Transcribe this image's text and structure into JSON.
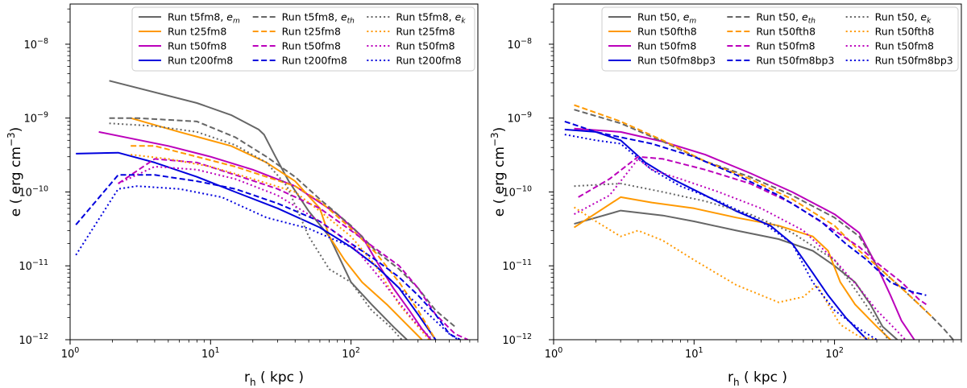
{
  "chart_data": [
    {
      "type": "line",
      "xscale": "log",
      "yscale": "log",
      "xlim": [
        1,
        800
      ],
      "ylim": [
        1e-12,
        3.5e-08
      ],
      "xlabel": "r_h ( kpc )",
      "ylabel": "e ( erg cm^-3 )",
      "xlabel_parts": {
        "base": "r",
        "sub": "h",
        "rest": " ( kpc )"
      },
      "ylabel_parts": {
        "pre": "e ( erg cm",
        "sup": "−3",
        "post": ")"
      },
      "x_ticks": [
        {
          "v": 1,
          "m": "0"
        },
        {
          "v": 10,
          "m": "1"
        },
        {
          "v": 100,
          "m": "2"
        }
      ],
      "y_ticks": [
        {
          "v": 1e-12,
          "m": "−12"
        },
        {
          "v": 1e-11,
          "m": "−11"
        },
        {
          "v": 1e-10,
          "m": "−10"
        },
        {
          "v": 1e-09,
          "m": "−9"
        },
        {
          "v": 1e-08,
          "m": "−8"
        }
      ],
      "legend_location": "top-right",
      "legend_columns": [
        [
          "s0",
          "s1",
          "s2",
          "s3"
        ],
        [
          "s4",
          "s5",
          "s6",
          "s7"
        ],
        [
          "s8",
          "s9",
          "s10",
          "s11"
        ]
      ],
      "series": [
        {
          "id": "s0",
          "label": "Run t5fm8, ",
          "label_math": "e",
          "label_sub": "m",
          "color": "#666666",
          "style": "solid",
          "x": [
            1.9,
            8,
            14,
            22,
            24,
            29,
            36,
            50,
            70,
            100,
            140,
            200,
            250
          ],
          "y": [
            3.2e-09,
            1.6e-09,
            1.1e-09,
            7e-10,
            6e-10,
            3e-10,
            1.4e-10,
            5.5e-11,
            2.5e-11,
            6e-12,
            3e-12,
            1.5e-12,
            1e-12
          ]
        },
        {
          "id": "s1",
          "label": "Run t25fm8",
          "color": "#ff9900",
          "style": "solid",
          "x": [
            2.7,
            6,
            14,
            25,
            40,
            60,
            70,
            90,
            120,
            180,
            250,
            320
          ],
          "y": [
            1e-09,
            6.5e-10,
            4.2e-10,
            2.5e-10,
            1.4e-10,
            6e-11,
            2.5e-11,
            1.2e-11,
            6e-12,
            3e-12,
            1.6e-12,
            1e-12
          ]
        },
        {
          "id": "s2",
          "label": "Run t50fm8",
          "color": "#bb00bb",
          "style": "solid",
          "x": [
            1.6,
            5,
            10,
            20,
            40,
            80,
            120,
            150,
            200,
            260,
            320,
            370
          ],
          "y": [
            6.5e-10,
            4.2e-10,
            3e-10,
            2e-10,
            1.2e-10,
            5e-11,
            2.5e-11,
            1.2e-11,
            5e-12,
            2.5e-12,
            1.4e-12,
            1e-12
          ]
        },
        {
          "id": "s3",
          "label": "Run t200fm8",
          "color": "#0000dd",
          "style": "solid",
          "x": [
            1.1,
            2.2,
            4,
            8,
            15,
            30,
            60,
            100,
            150,
            220,
            300,
            400
          ],
          "y": [
            3.3e-10,
            3.4e-10,
            2.5e-10,
            1.6e-10,
            1e-10,
            6e-11,
            3.3e-11,
            1.8e-11,
            1e-11,
            5e-12,
            2.2e-12,
            1e-12
          ]
        },
        {
          "id": "s4",
          "label": "Run t5fm8, ",
          "label_math": "e",
          "label_sub": "th",
          "color": "#666666",
          "style": "dashed",
          "x": [
            1.9,
            3,
            8,
            15,
            25,
            40,
            60,
            100,
            150,
            220,
            300,
            400,
            550
          ],
          "y": [
            1e-09,
            1e-09,
            9e-10,
            5.5e-10,
            3e-10,
            1.6e-10,
            8e-11,
            3.5e-11,
            1.6e-11,
            9e-12,
            5e-12,
            2.5e-12,
            1.5e-12
          ]
        },
        {
          "id": "s5",
          "label": "Run t25fm8",
          "color": "#ff9900",
          "style": "dashed",
          "x": [
            2.7,
            4,
            8,
            15,
            25,
            40,
            60,
            100,
            150,
            220,
            300,
            400
          ],
          "y": [
            4.2e-10,
            4.2e-10,
            3e-10,
            2.2e-10,
            1.6e-10,
            1.2e-10,
            7.5e-11,
            3.2e-11,
            1.5e-11,
            6e-12,
            2.5e-12,
            1e-12
          ]
        },
        {
          "id": "s6",
          "label": "Run t50fm8",
          "color": "#bb00bb",
          "style": "dashed",
          "x": [
            2.2,
            4,
            8,
            15,
            30,
            60,
            100,
            150,
            220,
            300,
            400,
            550,
            680
          ],
          "y": [
            1.3e-10,
            2.8e-10,
            2.5e-10,
            1.7e-10,
            1.1e-10,
            6e-11,
            3e-11,
            1.7e-11,
            1e-11,
            5e-12,
            2.2e-12,
            1.2e-12,
            1e-12
          ]
        },
        {
          "id": "s7",
          "label": "Run t200fm8",
          "color": "#0000dd",
          "style": "dashed",
          "x": [
            1.1,
            2.2,
            4,
            8,
            15,
            30,
            60,
            100,
            150,
            220,
            300,
            400,
            500,
            600
          ],
          "y": [
            3.6e-11,
            1.7e-10,
            1.7e-10,
            1.4e-10,
            1.1e-10,
            7e-11,
            4e-11,
            2e-11,
            1.2e-11,
            7e-12,
            4e-12,
            2.2e-12,
            1.2e-12,
            1e-12
          ]
        },
        {
          "id": "s8",
          "label": "Run t5fm8, ",
          "label_math": "e",
          "label_sub": "k",
          "color": "#666666",
          "style": "dotted",
          "x": [
            1.9,
            4,
            8,
            15,
            25,
            35,
            50,
            70,
            100,
            140,
            190,
            230
          ],
          "y": [
            8.5e-10,
            7.8e-10,
            6.5e-10,
            4.3e-10,
            2.5e-10,
            1.2e-10,
            2.5e-11,
            9e-12,
            6e-12,
            2.5e-12,
            1.5e-12,
            1e-12
          ]
        },
        {
          "id": "s9",
          "label": "Run t25fm8",
          "color": "#ff9900",
          "style": "dotted",
          "x": [
            2.7,
            5,
            10,
            20,
            40,
            60,
            100,
            150,
            220,
            300,
            360
          ],
          "y": [
            3.2e-10,
            2.8e-10,
            2.2e-10,
            1.5e-10,
            1e-10,
            5.5e-11,
            2.5e-11,
            1e-11,
            3e-12,
            1.5e-12,
            1e-12
          ]
        },
        {
          "id": "s10",
          "label": "Run t50fm8",
          "color": "#bb00bb",
          "style": "dotted",
          "x": [
            2.2,
            4,
            8,
            15,
            30,
            60,
            100,
            150,
            200,
            280,
            380
          ],
          "y": [
            1.3e-10,
            2.2e-10,
            2e-10,
            1.5e-10,
            9e-11,
            4e-11,
            2e-11,
            8e-12,
            4e-12,
            1.8e-12,
            1e-12
          ]
        },
        {
          "id": "s11",
          "label": "Run t200fm8",
          "color": "#0000dd",
          "style": "dotted",
          "x": [
            1.1,
            2.2,
            3,
            6,
            12,
            25,
            50,
            100,
            150,
            220,
            300,
            400,
            500,
            580
          ],
          "y": [
            1.4e-11,
            1.1e-10,
            1.2e-10,
            1.1e-10,
            8.5e-11,
            4.5e-11,
            3.2e-11,
            1.8e-11,
            1e-11,
            5e-12,
            3e-12,
            1.8e-12,
            1.2e-12,
            1e-12
          ]
        }
      ]
    },
    {
      "type": "line",
      "xscale": "log",
      "yscale": "log",
      "xlim": [
        1,
        800
      ],
      "ylim": [
        1e-12,
        3.5e-08
      ],
      "xlabel": "r_h ( kpc )",
      "ylabel": "e ( erg cm^-3 )",
      "xlabel_parts": {
        "base": "r",
        "sub": "h",
        "rest": " ( kpc )"
      },
      "ylabel_parts": {
        "pre": "e ( erg cm",
        "sup": "−3",
        "post": ")"
      },
      "x_ticks": [
        {
          "v": 1,
          "m": "0"
        },
        {
          "v": 10,
          "m": "1"
        },
        {
          "v": 100,
          "m": "2"
        }
      ],
      "y_ticks": [
        {
          "v": 1e-12,
          "m": "−12"
        },
        {
          "v": 1e-11,
          "m": "−11"
        },
        {
          "v": 1e-10,
          "m": "−10"
        },
        {
          "v": 1e-09,
          "m": "−9"
        },
        {
          "v": 1e-08,
          "m": "−8"
        }
      ],
      "legend_location": "top-right",
      "legend_columns": [
        [
          "s0",
          "s1",
          "s2",
          "s3"
        ],
        [
          "s4",
          "s5",
          "s6",
          "s7"
        ],
        [
          "s8",
          "s9",
          "s10",
          "s11"
        ]
      ],
      "series": [
        {
          "id": "s0",
          "label": "Run t50, ",
          "label_math": "e",
          "label_sub": "m",
          "color": "#666666",
          "style": "solid",
          "x": [
            1.4,
            3,
            6,
            10,
            20,
            40,
            70,
            100,
            140,
            180,
            220,
            280
          ],
          "y": [
            3.7e-11,
            5.6e-11,
            4.8e-11,
            4e-11,
            3e-11,
            2.3e-11,
            1.6e-11,
            1e-11,
            6e-12,
            3e-12,
            1.5e-12,
            1e-12
          ]
        },
        {
          "id": "s1",
          "label": "Run t50fth8",
          "color": "#ff9900",
          "style": "solid",
          "x": [
            1.4,
            3,
            5,
            10,
            20,
            40,
            70,
            90,
            110,
            140,
            200,
            250
          ],
          "y": [
            3.3e-11,
            8.5e-11,
            7.2e-11,
            6e-11,
            4.5e-11,
            3.5e-11,
            2.5e-11,
            1.6e-11,
            6e-12,
            3e-12,
            1.5e-12,
            1e-12
          ]
        },
        {
          "id": "s2",
          "label": "Run t50fm8",
          "color": "#bb00bb",
          "style": "solid",
          "x": [
            1.4,
            3,
            6,
            12,
            25,
            50,
            100,
            150,
            200,
            250,
            300,
            370
          ],
          "y": [
            7.2e-10,
            6.5e-10,
            4.8e-10,
            3.2e-10,
            1.8e-10,
            1e-10,
            5e-11,
            2.8e-11,
            1e-11,
            4e-12,
            1.8e-12,
            1e-12
          ]
        },
        {
          "id": "s3",
          "label": "Run t50fm8bp3",
          "color": "#0000dd",
          "style": "solid",
          "x": [
            1.2,
            2,
            3,
            4.5,
            7,
            12,
            20,
            35,
            50,
            70,
            90,
            120,
            170
          ],
          "y": [
            7e-10,
            6.5e-10,
            5e-10,
            2.5e-10,
            1.5e-10,
            9e-11,
            5.5e-11,
            3.5e-11,
            2e-11,
            8e-12,
            4e-12,
            2e-12,
            1e-12
          ]
        },
        {
          "id": "s4",
          "label": "Run t50, ",
          "label_math": "e",
          "label_sub": "th",
          "color": "#666666",
          "style": "dashed",
          "x": [
            1.4,
            3,
            6,
            12,
            25,
            50,
            100,
            150,
            200,
            300,
            400,
            500,
            600,
            700
          ],
          "y": [
            1.3e-09,
            8.5e-10,
            4.8e-10,
            2.6e-10,
            1.6e-10,
            9e-11,
            4.5e-11,
            2.5e-11,
            1e-11,
            5e-12,
            3e-12,
            2e-12,
            1.4e-12,
            1e-12
          ]
        },
        {
          "id": "s5",
          "label": "Run t50fth8",
          "color": "#ff9900",
          "style": "dashed",
          "x": [
            1.4,
            3,
            6,
            12,
            25,
            50,
            100,
            150,
            200,
            300,
            400,
            500
          ],
          "y": [
            1.5e-09,
            9e-10,
            5e-10,
            2.6e-10,
            1.5e-10,
            8e-11,
            3.5e-11,
            1.6e-11,
            1e-11,
            5e-12,
            3e-12,
            2e-12
          ]
        },
        {
          "id": "s6",
          "label": "Run t50fm8",
          "color": "#bb00bb",
          "style": "dashed",
          "x": [
            1.5,
            2.5,
            4,
            6,
            12,
            25,
            50,
            100,
            150,
            200,
            300,
            400,
            450
          ],
          "y": [
            8.5e-11,
            1.5e-10,
            3e-10,
            2.8e-10,
            2e-10,
            1.3e-10,
            7e-11,
            3e-11,
            1.8e-11,
            1.1e-11,
            6e-12,
            3.5e-12,
            3e-12
          ]
        },
        {
          "id": "s7",
          "label": "Run t50fm8bp3",
          "color": "#0000dd",
          "style": "dashed",
          "x": [
            1.2,
            2,
            3,
            5,
            10,
            20,
            40,
            80,
            120,
            170,
            250,
            350,
            450
          ],
          "y": [
            9e-10,
            6.5e-10,
            5.5e-10,
            4.5e-10,
            3e-10,
            1.7e-10,
            9e-11,
            4e-11,
            2e-11,
            1.2e-11,
            6e-12,
            4.5e-12,
            4e-12
          ]
        },
        {
          "id": "s8",
          "label": "Run t50, ",
          "label_math": "e",
          "label_sub": "k",
          "color": "#666666",
          "style": "dotted",
          "x": [
            1.4,
            3,
            6,
            12,
            25,
            50,
            100,
            150,
            200,
            240
          ],
          "y": [
            1.2e-10,
            1.3e-10,
            1e-10,
            7.5e-11,
            5e-11,
            2.8e-11,
            1.2e-11,
            4e-12,
            1.8e-12,
            1e-12
          ]
        },
        {
          "id": "s9",
          "label": "Run t50fth8",
          "color": "#ff9900",
          "style": "dotted",
          "x": [
            1.4,
            2,
            3,
            4,
            6,
            10,
            20,
            40,
            60,
            75,
            90,
            110,
            150,
            200
          ],
          "y": [
            6.2e-11,
            4e-11,
            2.5e-11,
            3e-11,
            2.2e-11,
            1.2e-11,
            5.5e-12,
            3.2e-12,
            3.8e-12,
            5.5e-12,
            3e-12,
            1.6e-12,
            1.1e-12,
            1e-12
          ]
        },
        {
          "id": "s10",
          "label": "Run t50fm8",
          "color": "#bb00bb",
          "style": "dotted",
          "x": [
            1.4,
            2.5,
            4,
            5,
            8,
            15,
            30,
            60,
            100,
            150,
            200,
            280,
            320
          ],
          "y": [
            5e-11,
            9e-11,
            2.8e-10,
            2e-10,
            1.5e-10,
            1e-10,
            6e-11,
            3e-11,
            1.2e-11,
            5e-12,
            2.5e-12,
            1.3e-12,
            1e-12
          ]
        },
        {
          "id": "s11",
          "label": "Run t50fm8bp3",
          "color": "#0000dd",
          "style": "dotted",
          "x": [
            1.2,
            2,
            3,
            5,
            8,
            15,
            30,
            50,
            70,
            100,
            150,
            200
          ],
          "y": [
            6e-10,
            5e-10,
            4.5e-10,
            2e-10,
            1.2e-10,
            7.5e-11,
            4e-11,
            2e-11,
            6e-12,
            2.5e-12,
            1.4e-12,
            1e-12
          ]
        }
      ]
    }
  ]
}
